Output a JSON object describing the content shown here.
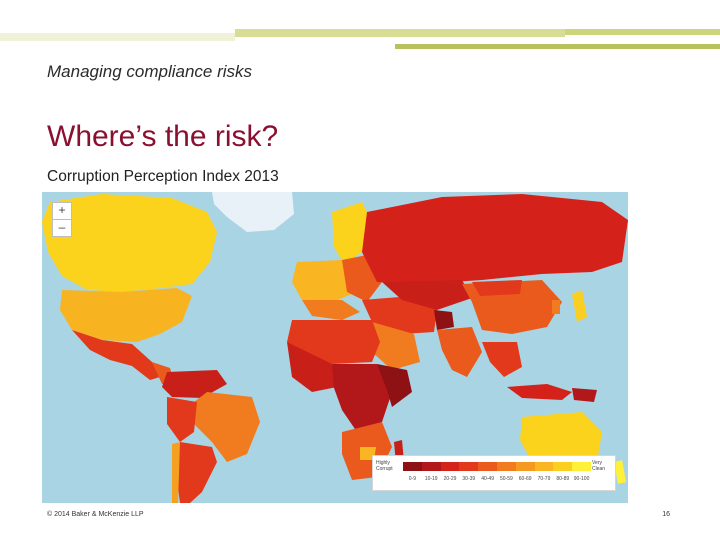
{
  "header": {
    "top_subtitle": "Managing compliance risks",
    "title": "Where’s the risk?",
    "subheading": "Corruption Perception Index 2013"
  },
  "map": {
    "zoom_in": "+",
    "zoom_out": "–",
    "ocean_color": "#a9d4e4",
    "legend": {
      "left_label": "Highly Corrupt",
      "right_label": "Very Clean",
      "ticks": [
        "0-9",
        "10-19",
        "20-29",
        "30-39",
        "40-49",
        "50-59",
        "60-69",
        "70-79",
        "80-89",
        "90-100"
      ],
      "colors": [
        "#8e1214",
        "#b2171a",
        "#d4221a",
        "#e2381b",
        "#ea5a1d",
        "#f07c1f",
        "#f59a20",
        "#f9b622",
        "#fbcf22",
        "#fff13a"
      ]
    }
  },
  "footer": {
    "copyright": "© 2014 Baker & McKenzie LLP",
    "page_number": "16"
  },
  "theme": {
    "title_color": "#8a1030",
    "band_light": "#f0f2d8",
    "band_mid": "#d7de94",
    "band_dark": "#b8c25c",
    "band_red": "#8a1030"
  }
}
